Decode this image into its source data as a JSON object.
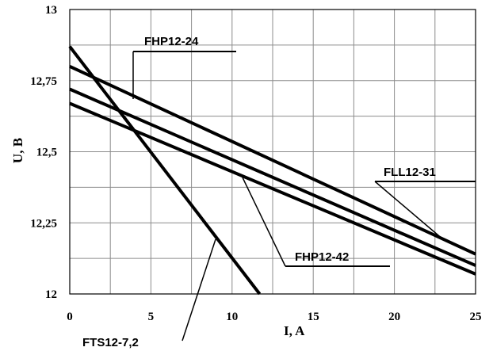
{
  "chart_data": {
    "type": "line",
    "xlabel": "I, A",
    "ylabel": "U, B",
    "xlim": [
      0,
      25
    ],
    "ylim": [
      12,
      13
    ],
    "grid": true,
    "x_ticks": [
      0,
      5,
      10,
      15,
      20,
      25
    ],
    "x_tick_labels": [
      "0",
      "5",
      "10",
      "15",
      "20",
      "25"
    ],
    "y_ticks": [
      12,
      12.25,
      12.5,
      12.75,
      13
    ],
    "y_tick_labels": [
      "12",
      "12,25",
      "12,5",
      "12,75",
      "13"
    ],
    "series": [
      {
        "name": "FHP12-24",
        "x": [
          0,
          25
        ],
        "y": [
          12.8,
          12.14
        ]
      },
      {
        "name": "FLL12-31",
        "x": [
          0,
          25
        ],
        "y": [
          12.72,
          12.1
        ]
      },
      {
        "name": "FHP12-42",
        "x": [
          0,
          25
        ],
        "y": [
          12.67,
          12.07
        ]
      },
      {
        "name": "FTS12-7,2",
        "x": [
          0,
          11.7
        ],
        "y": [
          12.87,
          12.0
        ]
      }
    ]
  }
}
